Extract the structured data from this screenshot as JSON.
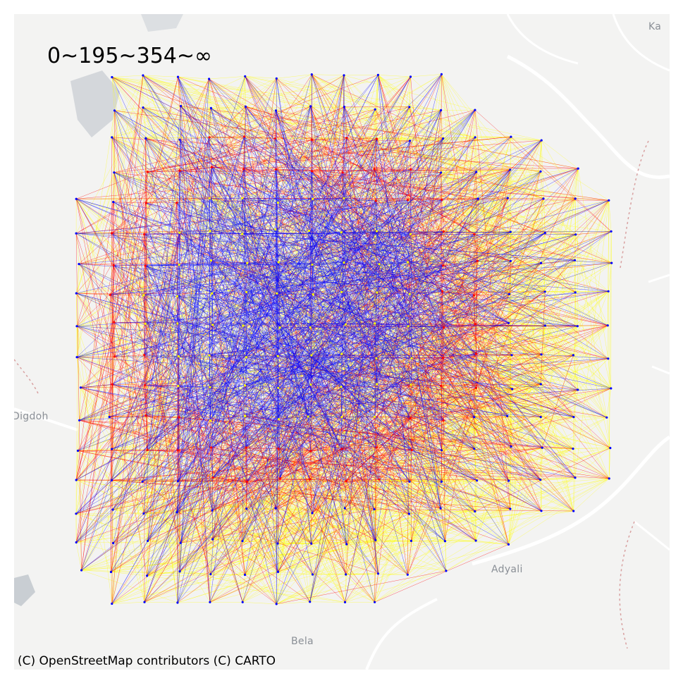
{
  "legend": {
    "title": "0~195~354~∞",
    "class_colors": [
      "#ffff00",
      "#ff0000",
      "#0000ff"
    ]
  },
  "attribution": "(C) OpenStreetMap contributors (C) CARTO",
  "basemap": {
    "places": [
      {
        "name": "Ka"
      },
      {
        "name": "Digdoh"
      },
      {
        "name": "Adyali"
      },
      {
        "name": "Bela"
      }
    ],
    "colors": {
      "land": "#f3f3f2",
      "road": "#ffffff",
      "water": "#c9ced3",
      "boundary": "#d8a0a0"
    }
  }
}
